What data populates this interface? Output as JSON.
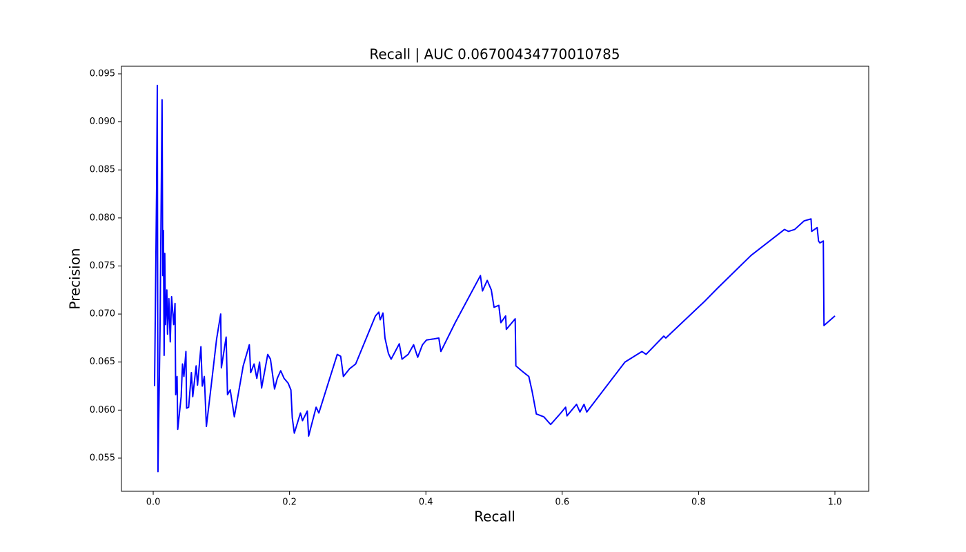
{
  "chart_data": {
    "type": "line",
    "title": "Recall | AUC 0.06700434770010785",
    "x_label": "Recall",
    "y_label": "Precision",
    "color": "#0000ff",
    "x": [
      0.002,
      0.005,
      0.006,
      0.007,
      0.01,
      0.013,
      0.014,
      0.015,
      0.016,
      0.017,
      0.018,
      0.02,
      0.021,
      0.023,
      0.025,
      0.027,
      0.03,
      0.032,
      0.033,
      0.035,
      0.036,
      0.041,
      0.043,
      0.045,
      0.048,
      0.049,
      0.052,
      0.056,
      0.058,
      0.063,
      0.065,
      0.07,
      0.072,
      0.075,
      0.078,
      0.085,
      0.093,
      0.099,
      0.1,
      0.107,
      0.109,
      0.113,
      0.119,
      0.132,
      0.141,
      0.143,
      0.148,
      0.152,
      0.156,
      0.159,
      0.168,
      0.172,
      0.178,
      0.182,
      0.187,
      0.192,
      0.198,
      0.202,
      0.204,
      0.207,
      0.216,
      0.219,
      0.226,
      0.228,
      0.239,
      0.243,
      0.27,
      0.275,
      0.279,
      0.288,
      0.297,
      0.326,
      0.331,
      0.333,
      0.337,
      0.34,
      0.345,
      0.349,
      0.361,
      0.365,
      0.374,
      0.382,
      0.388,
      0.395,
      0.401,
      0.411,
      0.419,
      0.422,
      0.443,
      0.48,
      0.483,
      0.49,
      0.496,
      0.5,
      0.507,
      0.51,
      0.517,
      0.518,
      0.531,
      0.532,
      0.542,
      0.551,
      0.556,
      0.562,
      0.573,
      0.583,
      0.598,
      0.605,
      0.607,
      0.621,
      0.626,
      0.632,
      0.636,
      0.692,
      0.717,
      0.723,
      0.749,
      0.752,
      0.81,
      0.828,
      0.877,
      0.926,
      0.932,
      0.941,
      0.955,
      0.965,
      0.966,
      0.974,
      0.976,
      0.978,
      0.983,
      0.984,
      1.0
    ],
    "values": [
      0.0625,
      0.0833,
      0.0938,
      0.0536,
      0.0682,
      0.0923,
      0.074,
      0.0787,
      0.0657,
      0.0763,
      0.0689,
      0.0725,
      0.0679,
      0.0716,
      0.0671,
      0.0718,
      0.0689,
      0.0711,
      0.0616,
      0.0635,
      0.058,
      0.0614,
      0.0648,
      0.0635,
      0.0661,
      0.0602,
      0.0603,
      0.0639,
      0.0614,
      0.0646,
      0.0626,
      0.0666,
      0.0625,
      0.0635,
      0.0583,
      0.0625,
      0.0674,
      0.07,
      0.0644,
      0.0676,
      0.0616,
      0.0621,
      0.0593,
      0.0646,
      0.0668,
      0.0639,
      0.0648,
      0.0633,
      0.065,
      0.0623,
      0.0658,
      0.0653,
      0.0622,
      0.0633,
      0.0641,
      0.0633,
      0.0628,
      0.0621,
      0.0592,
      0.0576,
      0.0597,
      0.0589,
      0.0599,
      0.0573,
      0.0603,
      0.0597,
      0.0658,
      0.0656,
      0.0635,
      0.0643,
      0.0648,
      0.0698,
      0.0702,
      0.0694,
      0.0701,
      0.0675,
      0.0659,
      0.0653,
      0.0669,
      0.0653,
      0.0658,
      0.0668,
      0.0655,
      0.0668,
      0.0673,
      0.0674,
      0.0675,
      0.0661,
      0.0691,
      0.074,
      0.0724,
      0.0735,
      0.0725,
      0.0707,
      0.0709,
      0.0691,
      0.0698,
      0.0684,
      0.0695,
      0.0646,
      0.064,
      0.0635,
      0.0619,
      0.0596,
      0.0593,
      0.0585,
      0.0597,
      0.0603,
      0.0594,
      0.0606,
      0.0598,
      0.0606,
      0.0598,
      0.065,
      0.0661,
      0.0658,
      0.0677,
      0.0675,
      0.0714,
      0.0727,
      0.0761,
      0.0788,
      0.0786,
      0.0788,
      0.0797,
      0.0799,
      0.0786,
      0.079,
      0.0776,
      0.0774,
      0.0776,
      0.0688,
      0.0698
    ],
    "xlim": [
      -0.0466,
      1.0496
    ],
    "ylim": [
      0.05155,
      0.09579
    ],
    "xticks": [
      {
        "value": 0,
        "label": "0.0"
      },
      0.2,
      0.4,
      0.6,
      0.8,
      {
        "value": 1,
        "label": "1.0"
      }
    ],
    "yticks": [
      0.055,
      {
        "value": 0.06,
        "label": "0.060"
      },
      0.065,
      {
        "value": 0.07,
        "label": "0.070"
      },
      0.075,
      {
        "value": 0.08,
        "label": "0.080"
      },
      0.085,
      {
        "value": 0.09,
        "label": "0.090"
      },
      0.095
    ],
    "grid": false
  }
}
